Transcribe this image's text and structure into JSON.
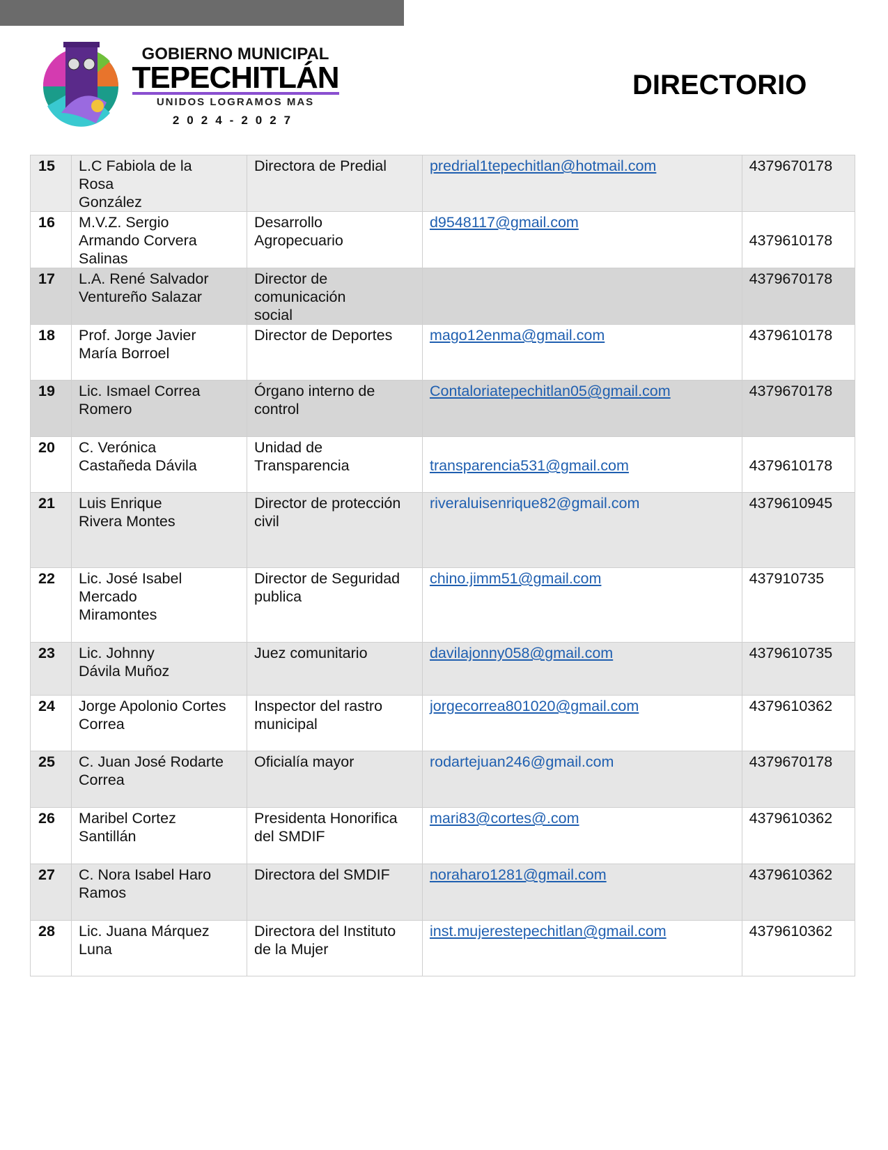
{
  "header": {
    "logo": {
      "line1": "GOBIERNO MUNICIPAL",
      "line2": "TEPECHITLÁN",
      "line3": "UNIDOS LOGRAMOS MAS",
      "line4": "2024-2027"
    },
    "title": "DIRECTORIO"
  },
  "colors": {
    "link": "#1f5fb0",
    "row_shade_light": "#ebebeb",
    "row_shade_dark": "#d6d6d6",
    "top_bar": "#6b6b6b"
  },
  "rows": [
    {
      "num": "15",
      "name": [
        "L.C Fabiola de la",
        "Rosa",
        "González"
      ],
      "position": [
        "Directora de Predial"
      ],
      "email": "predrial1tepechitlan@hotmail.com",
      "phone": "4379670178"
    },
    {
      "num": "16",
      "name": [
        "M.V.Z. Sergio",
        "Armando Corvera",
        "Salinas"
      ],
      "position": [
        "Desarrollo",
        "Agropecuario"
      ],
      "email": "d9548117@gmail.com",
      "phone": "4379610178"
    },
    {
      "num": "17",
      "name": [
        "L.A. René Salvador",
        "Ventureño Salazar"
      ],
      "position": [
        "Director de",
        "comunicación",
        "social"
      ],
      "email": "",
      "phone": "4379670178"
    },
    {
      "num": "18",
      "name": [
        "Prof. Jorge Javier",
        "María Borroel"
      ],
      "position": [
        "Director de Deportes"
      ],
      "email": "mago12enma@gmail.com",
      "phone": "4379610178"
    },
    {
      "num": "19",
      "name": [
        "Lic. Ismael Correa",
        "Romero"
      ],
      "position": [
        "Órgano interno de",
        "control"
      ],
      "email": "Contaloriatepechitlan05@gmail.com",
      "phone": "4379670178"
    },
    {
      "num": "20",
      "name": [
        "C. Verónica",
        "Castañeda Dávila"
      ],
      "position": [
        "Unidad de",
        "Transparencia"
      ],
      "email": "transparencia531@gmail.com",
      "phone": "4379610178"
    },
    {
      "num": "21",
      "name": [
        "Luis Enrique",
        "Rivera Montes"
      ],
      "position": [
        "Director de protección",
        "civil"
      ],
      "email": "riveraluisenrique82@gmail.com",
      "phone": "4379610945"
    },
    {
      "num": "22",
      "name": [
        "Lic. José Isabel",
        "Mercado",
        "Miramontes"
      ],
      "position": [
        "Director de Seguridad",
        "publica"
      ],
      "email": "chino.jimm51@gmail.com",
      "phone": "437910735"
    },
    {
      "num": "23",
      "name": [
        "Lic. Johnny",
        "Dávila Muñoz"
      ],
      "position": [
        "Juez comunitario"
      ],
      "email": "davilajonny058@gmail.com",
      "phone": "4379610735"
    },
    {
      "num": "24",
      "name": [
        "Jorge Apolonio Cortes",
        "Correa"
      ],
      "position": [
        "Inspector del rastro",
        "municipal"
      ],
      "email": "jorgecorrea801020@gmail.com",
      "phone": "4379610362"
    },
    {
      "num": "25",
      "name": [
        "C. Juan José Rodarte",
        "Correa"
      ],
      "position": [
        "Oficialía mayor"
      ],
      "email": "rodartejuan246@gmail.com",
      "phone": "4379670178"
    },
    {
      "num": "26",
      "name": [
        "Maribel Cortez",
        "Santillán"
      ],
      "position": [
        "Presidenta Honorifica",
        "del SMDIF"
      ],
      "email": "mari83@cortes@.com",
      "phone": "4379610362"
    },
    {
      "num": "27",
      "name": [
        "C. Nora Isabel Haro",
        "Ramos"
      ],
      "position": [
        "Directora del SMDIF"
      ],
      "email": "noraharo1281@gmail.com",
      "phone": "4379610362"
    },
    {
      "num": "28",
      "name": [
        "Lic. Juana Márquez",
        "Luna"
      ],
      "position": [
        "Directora del Instituto",
        "de la Mujer"
      ],
      "email": "inst.mujerestepechitlan@gmail.com",
      "phone": "4379610362"
    }
  ]
}
